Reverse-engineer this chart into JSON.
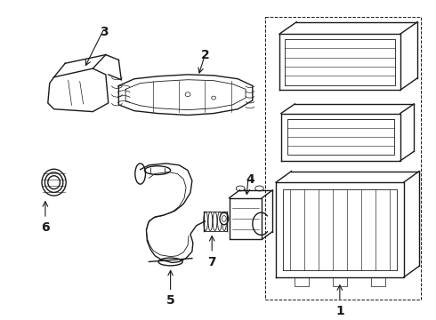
{
  "background_color": "#ffffff",
  "line_color": "#1a1a1a",
  "fig_width": 4.9,
  "fig_height": 3.6,
  "dpi": 100,
  "font_size": 10
}
